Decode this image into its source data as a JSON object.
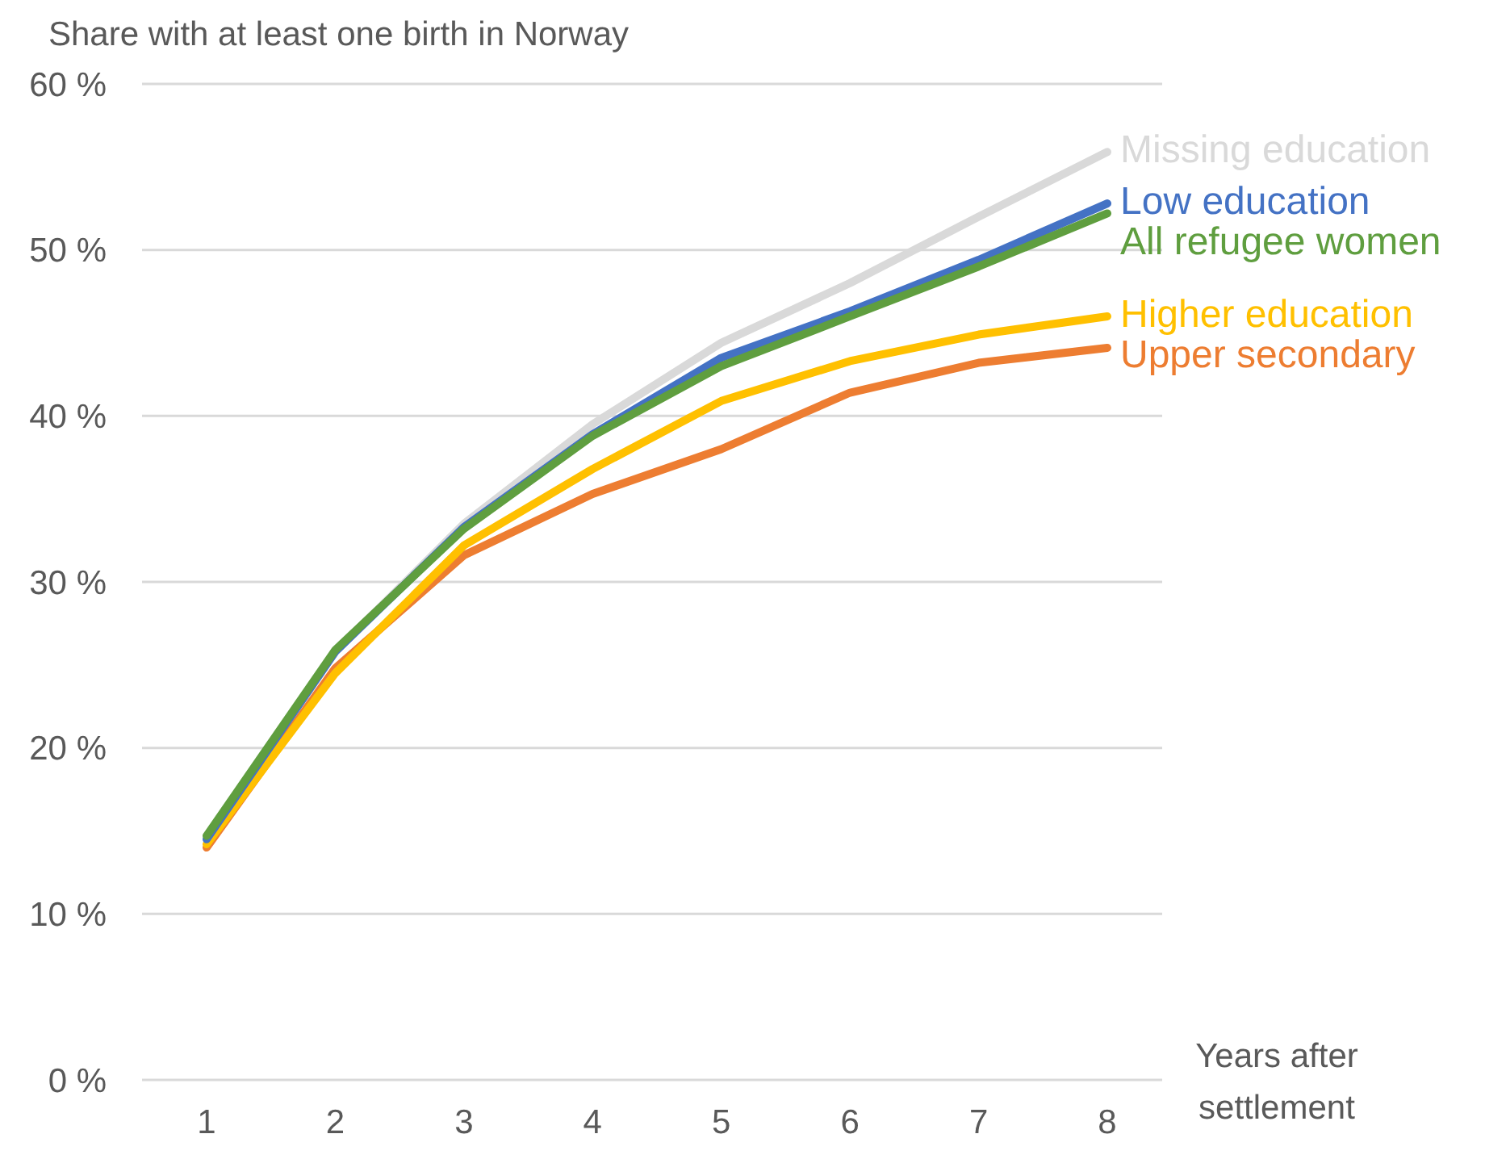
{
  "chart_data": {
    "type": "line",
    "ylabel": "Share with at least one birth in Norway",
    "xlabel": "Years after settlement",
    "categories": [
      "1",
      "2",
      "3",
      "4",
      "5",
      "6",
      "7",
      "8"
    ],
    "ylim": [
      0,
      60
    ],
    "yticks": [
      {
        "value": 0,
        "label": "0 %"
      },
      {
        "value": 10,
        "label": "10 %"
      },
      {
        "value": 20,
        "label": "20 %"
      },
      {
        "value": 30,
        "label": "30 %"
      },
      {
        "value": 40,
        "label": "40 %"
      },
      {
        "value": 50,
        "label": "50 %"
      },
      {
        "value": 60,
        "label": "60 %"
      }
    ],
    "grid": "y",
    "legend": false,
    "marker": "none",
    "line_style": "solid",
    "series": [
      {
        "name": "Missing education",
        "color": "#d9d9d9",
        "values": [
          14.5,
          25.8,
          33.5,
          39.5,
          44.4,
          48.0,
          52.0,
          55.9
        ]
      },
      {
        "name": "Upper secondary",
        "color": "#ed7d31",
        "values": [
          14.0,
          24.8,
          31.6,
          35.3,
          38.0,
          41.4,
          43.2,
          44.1
        ]
      },
      {
        "name": "Higher education",
        "color": "#ffc000",
        "values": [
          14.2,
          24.5,
          32.2,
          36.8,
          40.9,
          43.3,
          44.9,
          46.0
        ]
      },
      {
        "name": "Low education",
        "color": "#4472c4",
        "values": [
          14.5,
          25.8,
          33.3,
          38.9,
          43.5,
          46.3,
          49.4,
          52.8
        ]
      },
      {
        "name": "All refugee women",
        "color": "#5f9e3f",
        "values": [
          14.7,
          25.9,
          33.2,
          38.8,
          43.0,
          46.0,
          49.0,
          52.2
        ]
      }
    ]
  }
}
